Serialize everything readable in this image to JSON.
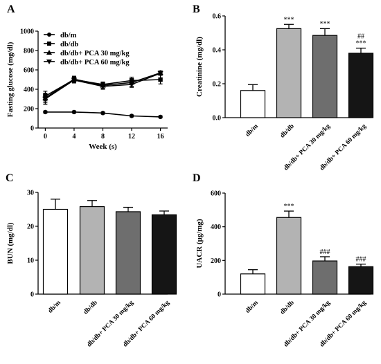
{
  "chart_data": [
    {
      "panel": "A",
      "type": "line",
      "xlabel": "Week (s)",
      "ylabel": "Fasting glucose (mg/dl)",
      "x": [
        0,
        4,
        8,
        12,
        16
      ],
      "xticks": [
        0,
        4,
        8,
        12,
        16
      ],
      "xlim": [
        -1,
        17
      ],
      "ylim": [
        0,
        1000
      ],
      "yticks": [
        0,
        200,
        400,
        600,
        800,
        1000
      ],
      "legend_position": "top-left",
      "series": [
        {
          "name": "db/m",
          "marker": "circle",
          "values": [
            165,
            165,
            155,
            125,
            115
          ],
          "err": [
            10,
            10,
            10,
            10,
            10
          ]
        },
        {
          "name": "db/db",
          "marker": "square",
          "values": [
            330,
            500,
            450,
            490,
            500
          ],
          "err": [
            50,
            30,
            25,
            35,
            45
          ]
        },
        {
          "name": "db/db+ PCA 30 mg/kg",
          "marker": "triangle-up",
          "values": [
            310,
            505,
            440,
            470,
            570
          ],
          "err": [
            50,
            30,
            30,
            40,
            20
          ]
        },
        {
          "name": "db/db+ PCA 60 mg/kg",
          "marker": "triangle-down",
          "values": [
            300,
            495,
            430,
            450,
            565
          ],
          "err": [
            55,
            30,
            30,
            30,
            20
          ]
        }
      ]
    },
    {
      "panel": "B",
      "type": "bar",
      "ylabel": "Creatinine (mg/dl)",
      "categories": [
        "db/m",
        "db/db",
        "db/db+ PCA 30 mg/kg",
        "db/db+ PCA 60 mg/kg"
      ],
      "values": [
        0.16,
        0.525,
        0.485,
        0.38
      ],
      "err": [
        0.035,
        0.025,
        0.04,
        0.03
      ],
      "colors": [
        "#ffffff",
        "#b3b3b3",
        "#6e6e6e",
        "#151515"
      ],
      "annotations": [
        [],
        [
          "***"
        ],
        [
          "***"
        ],
        [
          "##",
          "***"
        ]
      ],
      "ylim": [
        0,
        0.6
      ],
      "yticks": [
        0.0,
        0.2,
        0.4,
        0.6
      ]
    },
    {
      "panel": "C",
      "type": "bar",
      "ylabel": "BUN (mg/dl)",
      "categories": [
        "db/m",
        "db/db",
        "db/db+ PCA 30 mg/kg",
        "db/db+ PCA 60 mg/kg"
      ],
      "values": [
        25,
        25.8,
        24.3,
        23.4
      ],
      "err": [
        3.0,
        1.8,
        1.3,
        1.1
      ],
      "colors": [
        "#ffffff",
        "#b3b3b3",
        "#6e6e6e",
        "#151515"
      ],
      "annotations": [
        [],
        [],
        [],
        []
      ],
      "ylim": [
        0,
        30
      ],
      "yticks": [
        0,
        10,
        20,
        30
      ]
    },
    {
      "panel": "D",
      "type": "bar",
      "ylabel": "UACR (μg/mg)",
      "categories": [
        "db/m",
        "db/db",
        "db/db+ PCA 30 mg/kg",
        "db/db+ PCA 60 mg/kg"
      ],
      "values": [
        120,
        455,
        197,
        163
      ],
      "err": [
        25,
        38,
        25,
        15
      ],
      "colors": [
        "#ffffff",
        "#b3b3b3",
        "#6e6e6e",
        "#151515"
      ],
      "annotations": [
        [],
        [
          "***"
        ],
        [
          "###"
        ],
        [
          "###"
        ]
      ],
      "ylim": [
        0,
        600
      ],
      "yticks": [
        0,
        200,
        400,
        600
      ]
    }
  ]
}
